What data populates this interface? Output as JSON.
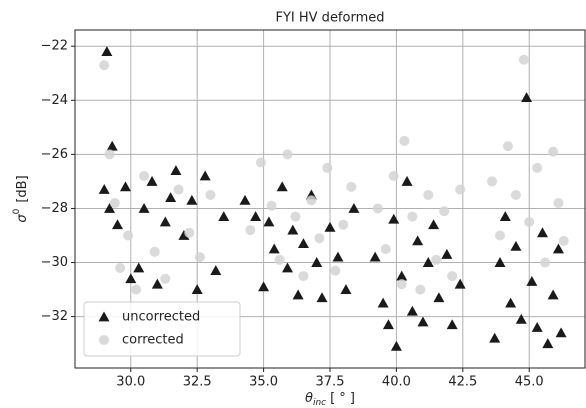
{
  "chart_data": {
    "type": "scatter",
    "title": "FYI HV deformed",
    "x_label": {
      "symbol": "θ",
      "subscript": "inc",
      "unit": "[ ° ]"
    },
    "y_label": {
      "symbol": "σ",
      "superscript": "0",
      "unit": "[dB]"
    },
    "xlim": [
      27.9,
      47.1
    ],
    "ylim": [
      -33.9,
      -21.4
    ],
    "xticks": [
      {
        "value": 30,
        "label": "30.0"
      },
      {
        "value": 32.5,
        "label": "32.5"
      },
      {
        "value": 35,
        "label": "35.0"
      },
      {
        "value": 37.5,
        "label": "37.5"
      },
      {
        "value": 40,
        "label": "40.0"
      },
      {
        "value": 42.5,
        "label": "42.5"
      },
      {
        "value": 45,
        "label": "45.0"
      }
    ],
    "yticks": [
      {
        "value": -32,
        "label": "−32"
      },
      {
        "value": -30,
        "label": "−30"
      },
      {
        "value": -28,
        "label": "−28"
      },
      {
        "value": -26,
        "label": "−26"
      },
      {
        "value": -24,
        "label": "−24"
      },
      {
        "value": -22,
        "label": "−22"
      }
    ],
    "grid": true,
    "legend": "lower left",
    "series": [
      {
        "name": "uncorrected",
        "color": "#1a1a1a",
        "marker": "triangle",
        "x": [
          29.1,
          29.3,
          29,
          29.2,
          29.5,
          29.8,
          30,
          30.3,
          30.5,
          30.8,
          31,
          31.3,
          31.5,
          31.7,
          32,
          32.3,
          32.5,
          32.8,
          33.2,
          33.5,
          34.3,
          34.7,
          35,
          35.2,
          35.4,
          35.7,
          35.9,
          36.1,
          36.3,
          36.5,
          36.8,
          37,
          37.2,
          37.5,
          37.8,
          38.1,
          38.4,
          39.2,
          39.5,
          39.7,
          39.9,
          40,
          40.2,
          40.4,
          40.6,
          40.8,
          41,
          41.2,
          41.4,
          41.6,
          41.9,
          42.1,
          42.4,
          43.7,
          43.9,
          44.1,
          44.3,
          44.5,
          44.7,
          44.9,
          45.1,
          45.3,
          45.5,
          45.7,
          45.9,
          46.1,
          46.2
        ],
        "values": [
          -22.2,
          -25.7,
          -27.3,
          -28.0,
          -28.6,
          -27.2,
          -30.6,
          -30.2,
          -28.0,
          -27.0,
          -30.8,
          -28.5,
          -27.6,
          -26.6,
          -29.0,
          -27.7,
          -31.0,
          -26.8,
          -30.3,
          -28.3,
          -27.7,
          -28.3,
          -30.9,
          -28.5,
          -29.5,
          -27.2,
          -30.2,
          -28.8,
          -31.2,
          -29.3,
          -27.5,
          -30.0,
          -31.3,
          -28.7,
          -29.8,
          -31.0,
          -28.0,
          -29.8,
          -31.5,
          -32.3,
          -28.4,
          -33.1,
          -30.5,
          -27.0,
          -31.8,
          -29.2,
          -32.2,
          -30.0,
          -28.6,
          -31.3,
          -29.7,
          -32.3,
          -30.8,
          -32.8,
          -30.0,
          -28.3,
          -31.5,
          -29.4,
          -32.1,
          -23.9,
          -30.7,
          -32.4,
          -28.9,
          -33.0,
          -31.2,
          -29.5,
          -32.6
        ]
      },
      {
        "name": "corrected",
        "color": "#d3d3d3",
        "marker": "circle",
        "x": [
          29,
          29.2,
          29.4,
          29.6,
          29.9,
          30.2,
          30.5,
          30.9,
          31.3,
          31.8,
          32.2,
          32.6,
          33,
          34.5,
          34.9,
          35.3,
          35.6,
          35.9,
          36.2,
          36.5,
          36.8,
          37.1,
          37.4,
          37.7,
          38,
          38.3,
          39.3,
          39.6,
          39.9,
          40.2,
          40.3,
          40.6,
          40.9,
          41.2,
          41.5,
          41.8,
          42.1,
          42.4,
          43.6,
          43.9,
          44.2,
          44.5,
          44.8,
          45,
          45.3,
          45.6,
          45.9,
          46.1,
          46.3
        ],
        "values": [
          -22.7,
          -26.0,
          -27.8,
          -30.2,
          -29.0,
          -31.0,
          -26.8,
          -29.6,
          -30.6,
          -27.3,
          -28.9,
          -29.8,
          -27.5,
          -28.8,
          -26.3,
          -27.9,
          -29.9,
          -26.0,
          -28.3,
          -30.5,
          -27.7,
          -29.1,
          -26.5,
          -30.3,
          -28.6,
          -27.2,
          -28.0,
          -29.5,
          -26.8,
          -30.8,
          -25.5,
          -28.3,
          -31.0,
          -27.5,
          -29.9,
          -28.1,
          -30.5,
          -27.3,
          -27.0,
          -29.0,
          -25.7,
          -27.5,
          -22.5,
          -28.5,
          -26.5,
          -30.0,
          -25.9,
          -27.8,
          -29.2
        ]
      }
    ]
  }
}
